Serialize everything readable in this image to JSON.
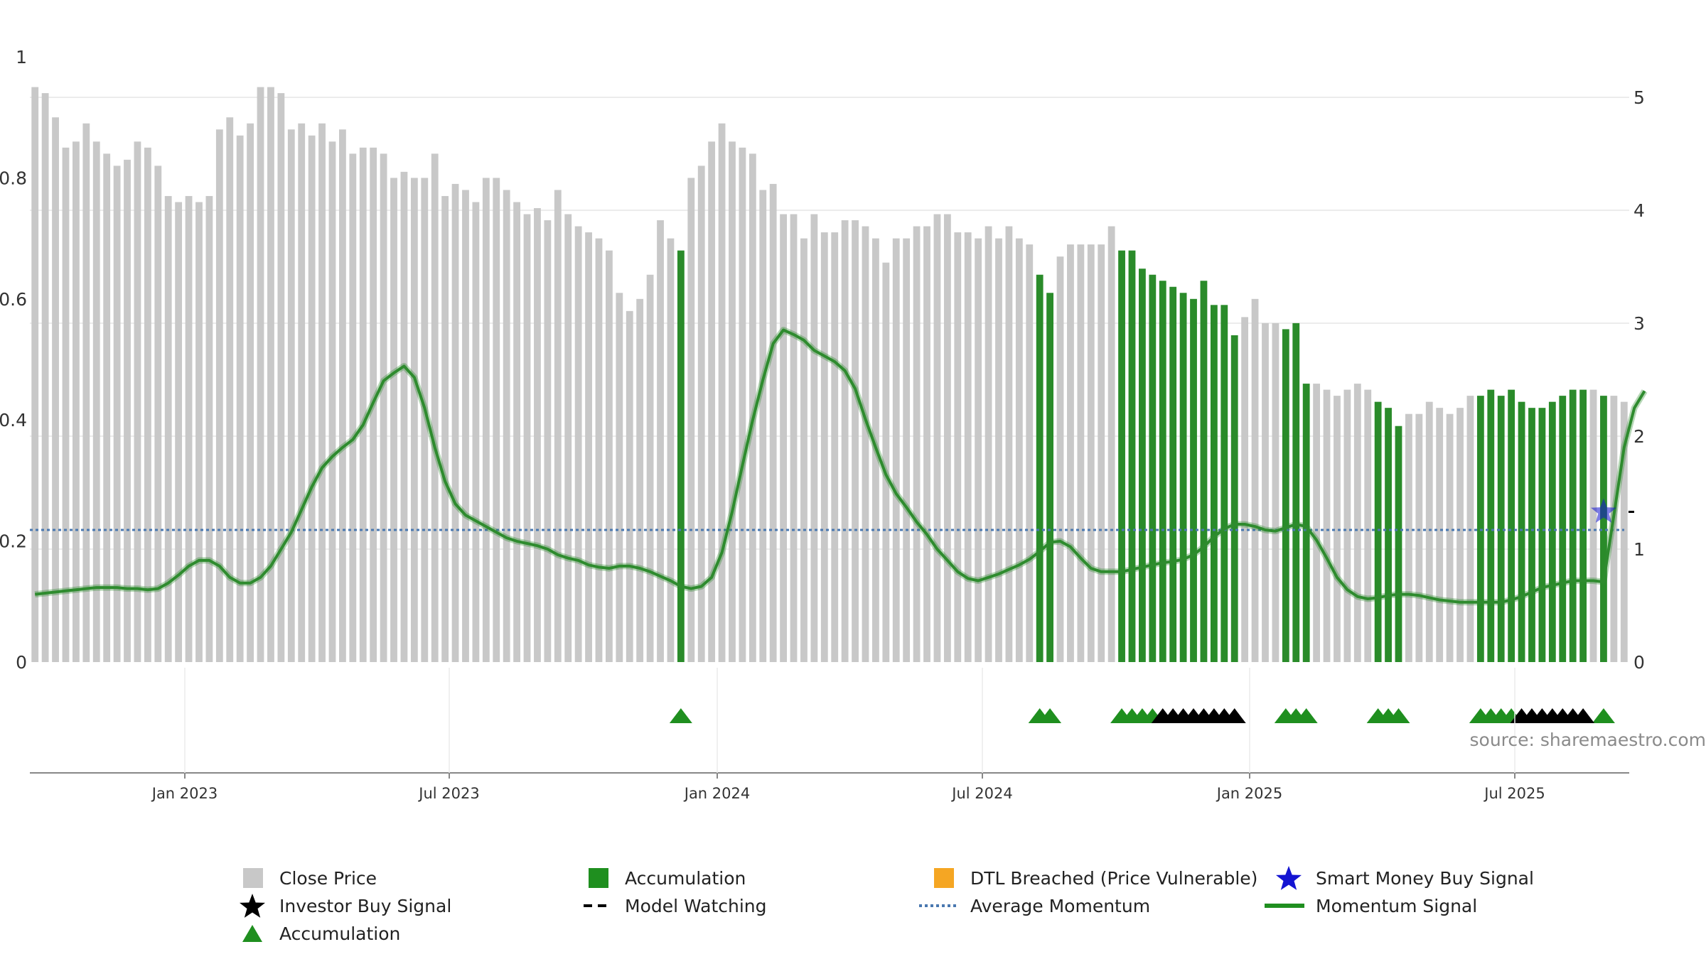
{
  "chart_data": {
    "type": "bar",
    "title": "",
    "left_axis": {
      "ylim": [
        0,
        1
      ],
      "ticks": [
        "0",
        "0.2",
        "0.4",
        "0.6",
        "0.8",
        "1"
      ]
    },
    "right_axis": {
      "ylim": [
        0,
        5
      ],
      "ticks": [
        "0",
        "1",
        "2",
        "3",
        "4",
        "5"
      ]
    },
    "x_ticks": [
      "Jan 2023",
      "Jul 2023",
      "Jan 2024",
      "Jul 2024",
      "Jan 2025",
      "Jul 2025"
    ],
    "bar_count": 156,
    "close_price_bars": [
      0.95,
      0.94,
      0.9,
      0.85,
      0.86,
      0.89,
      0.86,
      0.84,
      0.82,
      0.83,
      0.86,
      0.85,
      0.82,
      0.77,
      0.76,
      0.77,
      0.76,
      0.77,
      0.88,
      0.9,
      0.87,
      0.89,
      0.95,
      0.95,
      0.94,
      0.88,
      0.89,
      0.87,
      0.89,
      0.86,
      0.88,
      0.84,
      0.85,
      0.85,
      0.84,
      0.8,
      0.81,
      0.8,
      0.8,
      0.84,
      0.77,
      0.79,
      0.78,
      0.76,
      0.8,
      0.8,
      0.78,
      0.76,
      0.74,
      0.75,
      0.73,
      0.78,
      0.74,
      0.72,
      0.71,
      0.7,
      0.68,
      0.61,
      0.58,
      0.6,
      0.64,
      0.73,
      0.7,
      0.68,
      0.8,
      0.82,
      0.86,
      0.89,
      0.86,
      0.85,
      0.84,
      0.78,
      0.79,
      0.74,
      0.74,
      0.7,
      0.74,
      0.71,
      0.71,
      0.73,
      0.73,
      0.72,
      0.7,
      0.66,
      0.7,
      0.7,
      0.72,
      0.72,
      0.74,
      0.74,
      0.71,
      0.71,
      0.7,
      0.72,
      0.7,
      0.72,
      0.7,
      0.69,
      0.64,
      0.61,
      0.67,
      0.69,
      0.69,
      0.69,
      0.69,
      0.72,
      0.68,
      0.68,
      0.65,
      0.64,
      0.63,
      0.62,
      0.61,
      0.6,
      0.63,
      0.59,
      0.59,
      0.54,
      0.57,
      0.6,
      0.56,
      0.56,
      0.55,
      0.56,
      0.46,
      0.46,
      0.45,
      0.44,
      0.45,
      0.46,
      0.45,
      0.43,
      0.42,
      0.39,
      0.41,
      0.41,
      0.43,
      0.42,
      0.41,
      0.42,
      0.44,
      0.44,
      0.45,
      0.44,
      0.45,
      0.43,
      0.42,
      0.42,
      0.43,
      0.44,
      0.45,
      0.45,
      0.45,
      0.44,
      0.44,
      0.43
    ],
    "accumulation_bar_indices": [
      63,
      98,
      99,
      106,
      107,
      108,
      109,
      110,
      111,
      112,
      113,
      114,
      115,
      116,
      117,
      122,
      123,
      124,
      131,
      132,
      133,
      141,
      142,
      143,
      144,
      145,
      146,
      147,
      148,
      149,
      150,
      151,
      153
    ],
    "accumulation_triangle_indices": [
      63,
      98,
      99,
      106,
      107,
      108,
      109,
      122,
      123,
      124,
      131,
      132,
      133,
      141,
      142,
      143,
      144,
      153
    ],
    "investor_buy_signal_indices": [
      110,
      111,
      112,
      113,
      114,
      115,
      116,
      117,
      145,
      146,
      147,
      148,
      149,
      150,
      151
    ],
    "average_momentum": 1.17,
    "momentum_signal_right_axis": [
      0.6,
      0.61,
      0.62,
      0.63,
      0.64,
      0.65,
      0.66,
      0.66,
      0.66,
      0.65,
      0.65,
      0.64,
      0.65,
      0.7,
      0.77,
      0.85,
      0.9,
      0.9,
      0.85,
      0.75,
      0.7,
      0.7,
      0.75,
      0.85,
      1.0,
      1.15,
      1.35,
      1.55,
      1.72,
      1.82,
      1.9,
      1.97,
      2.1,
      2.3,
      2.49,
      2.56,
      2.62,
      2.52,
      2.25,
      1.9,
      1.6,
      1.4,
      1.3,
      1.25,
      1.2,
      1.15,
      1.1,
      1.07,
      1.05,
      1.03,
      1.0,
      0.95,
      0.92,
      0.9,
      0.86,
      0.84,
      0.83,
      0.85,
      0.85,
      0.83,
      0.8,
      0.76,
      0.72,
      0.67,
      0.65,
      0.67,
      0.75,
      0.97,
      1.33,
      1.74,
      2.14,
      2.5,
      2.82,
      2.94,
      2.9,
      2.85,
      2.76,
      2.71,
      2.66,
      2.58,
      2.42,
      2.15,
      1.9,
      1.66,
      1.49,
      1.37,
      1.24,
      1.13,
      1.0,
      0.9,
      0.8,
      0.74,
      0.72,
      0.75,
      0.78,
      0.82,
      0.86,
      0.91,
      0.98,
      1.06,
      1.07,
      1.02,
      0.92,
      0.83,
      0.8,
      0.8,
      0.8,
      0.82,
      0.84,
      0.86,
      0.88,
      0.89,
      0.91,
      0.95,
      1.02,
      1.11,
      1.18,
      1.22,
      1.22,
      1.2,
      1.17,
      1.16,
      1.19,
      1.22,
      1.2,
      1.08,
      0.92,
      0.75,
      0.64,
      0.58,
      0.56,
      0.57,
      0.59,
      0.6,
      0.6,
      0.59,
      0.57,
      0.55,
      0.54,
      0.53,
      0.53,
      0.53,
      0.53,
      0.53,
      0.55,
      0.58,
      0.62,
      0.66,
      0.68,
      0.7,
      0.72,
      0.72,
      0.72,
      0.71,
      1.3,
      1.9,
      2.25,
      2.4
    ],
    "smart_money_buy_signal": {
      "index": 153,
      "value_right_axis": 1.33
    },
    "legend": [
      "Close Price",
      "Accumulation",
      "DTL Breached (Price Vulnerable)",
      "Smart Money Buy Signal",
      "Investor Buy Signal",
      "Model Watching",
      "Average Momentum",
      "Momentum Signal",
      "Accumulation"
    ],
    "colors": {
      "close_price": "#c8c8c8",
      "accumulation": "#2a8b2a",
      "accumulation_triangle": "#1f8f1f",
      "investor_buy": "#000000",
      "dtl_breached": "#f5a623",
      "smart_money": "#1414d2",
      "average_momentum": "#4a78b0",
      "momentum_line": "#2e8b2e"
    }
  },
  "source_text": "source: sharemaestro.com"
}
